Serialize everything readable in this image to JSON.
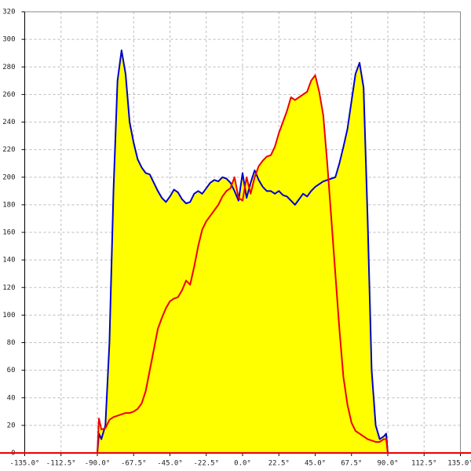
{
  "chart_data": {
    "type": "area",
    "x": [
      -90,
      -89,
      -87.5,
      -85,
      -82.5,
      -80,
      -77.5,
      -75,
      -72.5,
      -70,
      -67.5,
      -65,
      -62.5,
      -60,
      -57.5,
      -55,
      -52.5,
      -50,
      -47.5,
      -45,
      -42.5,
      -40,
      -37.5,
      -35,
      -32.5,
      -30,
      -27.5,
      -25,
      -22.5,
      -20,
      -17.5,
      -15,
      -12.5,
      -10,
      -7.5,
      -5,
      -2.5,
      0,
      2.5,
      5,
      7.5,
      10,
      12.5,
      15,
      17.5,
      20,
      22.5,
      25,
      27.5,
      30,
      32.5,
      35,
      37.5,
      40,
      42.5,
      45,
      47.5,
      50,
      52.5,
      55,
      57.5,
      60,
      62.5,
      65,
      67.5,
      70,
      72.5,
      75,
      77.5,
      80,
      82.5,
      85,
      87.5,
      89,
      90
    ],
    "series": [
      {
        "color": "#0000cc",
        "fill": "#ffff00",
        "values": [
          0,
          14,
          10,
          20,
          80,
          190,
          270,
          292,
          275,
          240,
          225,
          213,
          207,
          203,
          202,
          196,
          190,
          185,
          182,
          186,
          191,
          189,
          184,
          181,
          182,
          188,
          190,
          188,
          192,
          196,
          198,
          197,
          200,
          199,
          196,
          190,
          183,
          203,
          185,
          196,
          205,
          198,
          193,
          190,
          190,
          188,
          190,
          187,
          186,
          183,
          180,
          184,
          188,
          186,
          190,
          193,
          195,
          197,
          198,
          199,
          200,
          210,
          222,
          235,
          255,
          275,
          283,
          265,
          170,
          60,
          20,
          10,
          12,
          14,
          0
        ]
      },
      {
        "color": "#ee0000",
        "fill": "#ffff00",
        "values": [
          0,
          25,
          17,
          18,
          24,
          26,
          27,
          28,
          29,
          29,
          30,
          32,
          36,
          45,
          60,
          75,
          90,
          98,
          105,
          110,
          112,
          113,
          118,
          125,
          122,
          135,
          150,
          162,
          168,
          172,
          176,
          180,
          186,
          190,
          192,
          200,
          185,
          183,
          200,
          188,
          200,
          208,
          212,
          215,
          216,
          222,
          232,
          240,
          248,
          258,
          256,
          258,
          260,
          262,
          270,
          274,
          262,
          245,
          210,
          170,
          130,
          90,
          55,
          35,
          22,
          16,
          14,
          12,
          10,
          9,
          8,
          8,
          10,
          10,
          0
        ]
      }
    ],
    "xlim": [
      -135,
      135
    ],
    "xticks": [
      {
        "value": -135,
        "label": "-135.0°"
      },
      {
        "value": -112.5,
        "label": "-112.5°"
      },
      {
        "value": -90,
        "label": "-90.0°"
      },
      {
        "value": -67.5,
        "label": "-67.5°"
      },
      {
        "value": -45,
        "label": "-45.0°"
      },
      {
        "value": -22.5,
        "label": "-22.5°"
      },
      {
        "value": 0,
        "label": "0.0°"
      },
      {
        "value": 22.5,
        "label": "22.5°"
      },
      {
        "value": 45,
        "label": "45.0°"
      },
      {
        "value": 67.5,
        "label": "67.5°"
      },
      {
        "value": 90,
        "label": "90.0°"
      },
      {
        "value": 112.5,
        "label": "112.5°"
      },
      {
        "value": 135,
        "label": "135.0°"
      }
    ],
    "ylim": [
      0,
      320
    ],
    "yticks": [
      0,
      20,
      40,
      60,
      80,
      100,
      120,
      140,
      160,
      180,
      200,
      220,
      240,
      260,
      280,
      300,
      320
    ],
    "grid": true
  }
}
